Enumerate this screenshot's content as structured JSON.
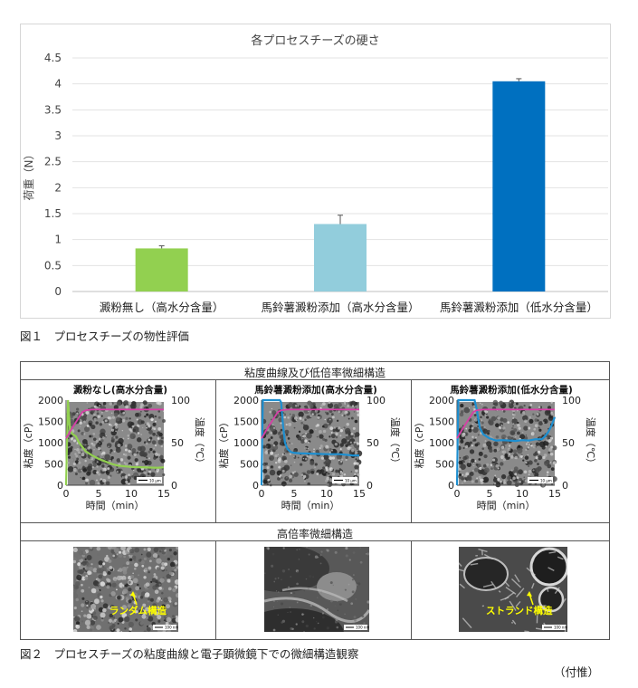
{
  "figure1": {
    "chart_data": {
      "type": "bar",
      "title": "各プロセスチーズの硬さ",
      "ylabel": "荷重（N）",
      "xlabel": "",
      "ylim": [
        0,
        4.5
      ],
      "yticks": [
        "0",
        "0.5",
        "1",
        "1.5",
        "2",
        "2.5",
        "3",
        "3.5",
        "4",
        "4.5"
      ],
      "grid": true,
      "categories": [
        "澱粉無し（高水分含量）",
        "馬鈴薯澱粉添加（高水分含量）",
        "馬鈴薯澱粉添加（低水分含量）"
      ],
      "values": [
        0.83,
        1.3,
        4.05
      ],
      "errors": [
        0.05,
        0.17,
        0.05
      ],
      "colors": [
        "#92d050",
        "#92cddc",
        "#0070c0"
      ]
    },
    "caption": "図１　プロセスチーズの物性評価"
  },
  "figure2": {
    "header_top": "粘度曲線及び低倍率微細構造",
    "header_mid": "高倍率微細構造",
    "panels": [
      {
        "title": "澱粉なし(高水分含量)",
        "viscosity_color": "#92d050",
        "temp_color": "#d63fa6",
        "chart_data": {
          "type": "line",
          "x_axis": {
            "label": "時間（min）",
            "ticks": [
              "0",
              "5",
              "10",
              "15"
            ],
            "range": [
              0,
              15
            ]
          },
          "y_axis_left": {
            "label": "粘度（cP）",
            "ticks": [
              "0",
              "500",
              "1000",
              "1500",
              "2000"
            ],
            "range": [
              0,
              2000
            ]
          },
          "y_axis_right": {
            "label": "温度（℃）",
            "ticks": [
              "0",
              "50",
              "100"
            ],
            "range": [
              0,
              100
            ]
          },
          "series": [
            {
              "x": [
                0,
                0.3,
                0.6,
                1,
                1.5,
                2,
                2.5,
                3,
                3.5,
                4,
                5,
                6,
                7,
                8,
                10,
                12,
                14,
                15
              ],
              "y": [
                0,
                2000,
                1300,
                1200,
                1150,
                1000,
                900,
                800,
                750,
                700,
                620,
                560,
                500,
                460,
                430,
                420,
                410,
                420
              ]
            },
            {
              "x": [
                0,
                1,
                2,
                2.5,
                3,
                4,
                6,
                8,
                10,
                12,
                14,
                15
              ],
              "y": [
                55,
                68,
                80,
                86,
                88,
                89,
                89,
                89,
                89,
                89,
                89,
                89
              ]
            }
          ]
        },
        "scale_text": "10 µm",
        "high_label": "ランダム構造",
        "high_scale": "100 nm"
      },
      {
        "title": "馬鈴薯澱粉添加(高水分含量)",
        "viscosity_color": "#1e8fd0",
        "temp_color": "#d63fa6",
        "chart_data": {
          "type": "line",
          "x_axis": {
            "label": "時間（min）",
            "ticks": [
              "0",
              "5",
              "10",
              "15"
            ],
            "range": [
              0,
              15
            ]
          },
          "y_axis_left": {
            "label": "粘度（cP）",
            "ticks": [
              "0",
              "500",
              "1000",
              "1500",
              "2000"
            ],
            "range": [
              0,
              2000
            ]
          },
          "y_axis_right": {
            "label": "温度（℃）",
            "ticks": [
              "0",
              "50",
              "100"
            ],
            "range": [
              0,
              100
            ]
          },
          "series": [
            {
              "x": [
                0,
                0.2,
                2.8,
                3,
                3.3,
                3.6,
                4,
                4.5,
                5,
                6,
                8,
                10,
                12,
                14,
                15
              ],
              "y": [
                0,
                2000,
                2000,
                1950,
                1400,
                1000,
                850,
                780,
                760,
                750,
                740,
                730,
                730,
                700,
                700
              ]
            },
            {
              "x": [
                0,
                1,
                2,
                2.5,
                3,
                4,
                6,
                8,
                10,
                12,
                14,
                15
              ],
              "y": [
                55,
                68,
                80,
                86,
                88,
                89,
                89,
                89,
                89,
                89,
                89,
                89
              ]
            }
          ]
        },
        "scale_text": "10 µm",
        "high_label": "",
        "high_scale": "100 nm"
      },
      {
        "title": "馬鈴薯澱粉添加(低水分含量)",
        "viscosity_color": "#1e8fd0",
        "temp_color": "#d63fa6",
        "chart_data": {
          "type": "line",
          "x_axis": {
            "label": "時間（min）",
            "ticks": [
              "0",
              "5",
              "10",
              "15"
            ],
            "range": [
              0,
              15
            ]
          },
          "y_axis_left": {
            "label": "粘度（cP）",
            "ticks": [
              "0",
              "500",
              "1000",
              "1500",
              "2000"
            ],
            "range": [
              0,
              2000
            ]
          },
          "y_axis_right": {
            "label": "温度（℃）",
            "ticks": [
              "0",
              "50",
              "100"
            ],
            "range": [
              0,
              100
            ]
          },
          "series": [
            {
              "x": [
                0,
                0.2,
                2.7,
                3,
                3.5,
                4,
                5,
                6,
                7,
                8,
                9,
                10,
                11,
                12,
                13,
                13.5,
                14,
                14.5,
                15
              ],
              "y": [
                0,
                2000,
                2000,
                1800,
                1350,
                1200,
                1100,
                1050,
                1060,
                1050,
                1040,
                1060,
                1050,
                1080,
                1080,
                1150,
                1250,
                1400,
                1600
              ]
            },
            {
              "x": [
                0,
                1,
                2,
                2.5,
                3,
                4,
                6,
                8,
                10,
                12,
                14,
                15
              ],
              "y": [
                55,
                68,
                80,
                86,
                88,
                89,
                89,
                89,
                89,
                89,
                89,
                89
              ]
            }
          ]
        },
        "scale_text": "10 µm",
        "high_label": "ストランド構造",
        "high_scale": "100 nm"
      }
    ],
    "caption": "図２　プロセスチーズの粘度曲線と電子顕微鏡下での微細構造観察"
  },
  "credit": "（付惟）"
}
